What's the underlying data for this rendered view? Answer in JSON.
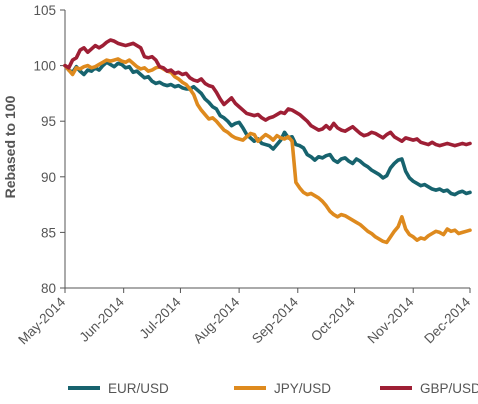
{
  "chart_data": {
    "type": "line",
    "title": "",
    "xlabel": "",
    "ylabel": "Rebased to 100",
    "ylim": [
      80,
      105
    ],
    "yticks": [
      80,
      85,
      90,
      95,
      100,
      105
    ],
    "xtick_labels": [
      "May-2014",
      "Jun-2014",
      "Jul-2014",
      "Aug-2014",
      "Sep-2014",
      "Oct-2014",
      "Nov-2014",
      "Dec-2014"
    ],
    "grid": false,
    "legend_position": "bottom",
    "series": [
      {
        "name": "EUR/USD",
        "color": "#17636E",
        "x": [
          0,
          2,
          4,
          6,
          8,
          10,
          12,
          14,
          16,
          18,
          20,
          22,
          24,
          26,
          28,
          30,
          32,
          34,
          36,
          38,
          40,
          42,
          44,
          46,
          48,
          50,
          52,
          54,
          56,
          58,
          60,
          62,
          64,
          66,
          68,
          70,
          72,
          74,
          76,
          78,
          80,
          82,
          84,
          86,
          88,
          90,
          92,
          94,
          96,
          98,
          100,
          102,
          104,
          106,
          108,
          110,
          112,
          114,
          116,
          118,
          120,
          122,
          124,
          126,
          128,
          130,
          132,
          134,
          136,
          138,
          140,
          142,
          144,
          146,
          148,
          150,
          152,
          154,
          156,
          158,
          160,
          162,
          164,
          166,
          168,
          170,
          172,
          174,
          176,
          178,
          180,
          182,
          184,
          186,
          188,
          190,
          192,
          194,
          196,
          198,
          200,
          202,
          204,
          206,
          208,
          210,
          212,
          214
        ],
        "values": [
          100,
          99.6,
          99.4,
          99.9,
          99.5,
          99.2,
          99.6,
          99.5,
          99.8,
          99.6,
          100,
          100.3,
          100.1,
          99.9,
          100.2,
          100.1,
          99.8,
          99.9,
          99.4,
          99.5,
          99.2,
          98.9,
          99,
          98.6,
          98.4,
          98.5,
          98.3,
          98.2,
          98.3,
          98.1,
          98.2,
          98,
          97.9,
          97.9,
          98.1,
          97.8,
          97.5,
          97,
          96.7,
          96.3,
          96.1,
          95.5,
          95.3,
          95,
          94.6,
          94.8,
          94.9,
          94.4,
          93.8,
          93.5,
          93.2,
          93.4,
          93,
          92.9,
          92.8,
          92.5,
          92.9,
          93.3,
          94,
          93.5,
          93.6,
          92.9,
          92.8,
          92.6,
          92,
          91.8,
          91.5,
          91.8,
          91.7,
          91.9,
          92,
          91.5,
          91.3,
          91.6,
          91.7,
          91.4,
          91.2,
          91.6,
          91.4,
          91.1,
          90.9,
          90.6,
          90.4,
          90.2,
          89.9,
          90.1,
          90.8,
          91.2,
          91.5,
          91.6,
          90.5,
          89.9,
          89.6,
          89.4,
          89.2,
          89.3,
          89.1,
          88.9,
          88.8,
          88.9,
          88.7,
          88.8,
          88.5,
          88.4,
          88.6,
          88.7,
          88.5,
          88.6
        ]
      },
      {
        "name": "JPY/USD",
        "color": "#DE8A1E",
        "x": [
          0,
          2,
          4,
          6,
          8,
          10,
          12,
          14,
          16,
          18,
          20,
          22,
          24,
          26,
          28,
          30,
          32,
          34,
          36,
          38,
          40,
          42,
          44,
          46,
          48,
          50,
          52,
          54,
          56,
          58,
          60,
          62,
          64,
          66,
          68,
          70,
          72,
          74,
          76,
          78,
          80,
          82,
          84,
          86,
          88,
          90,
          92,
          94,
          96,
          98,
          100,
          102,
          104,
          106,
          108,
          110,
          112,
          114,
          116,
          118,
          120,
          122,
          124,
          126,
          128,
          130,
          132,
          134,
          136,
          138,
          140,
          142,
          144,
          146,
          148,
          150,
          152,
          154,
          156,
          158,
          160,
          162,
          164,
          166,
          168,
          170,
          172,
          174,
          176,
          178,
          180,
          182,
          184,
          186,
          188,
          190,
          192,
          194,
          196,
          198,
          200,
          202,
          204,
          206,
          208,
          210,
          212,
          214
        ],
        "values": [
          100,
          99.6,
          99.2,
          99.8,
          99.7,
          99.9,
          100,
          99.8,
          99.9,
          100.1,
          100.3,
          100.5,
          100.4,
          100.5,
          100.6,
          100.4,
          100.3,
          100.5,
          100.2,
          99.9,
          99.7,
          99.8,
          99.5,
          99.6,
          99.8,
          99.9,
          99.7,
          99.5,
          99.4,
          99,
          98.8,
          98.5,
          98.3,
          97.9,
          97.4,
          96.5,
          96,
          95.6,
          95.2,
          95.3,
          95,
          94.6,
          94.2,
          94,
          93.7,
          93.5,
          93.4,
          93.3,
          93.6,
          93.9,
          93.8,
          93.2,
          93.5,
          93.8,
          93.6,
          93.3,
          93.7,
          93.5,
          93.4,
          93.6,
          93.2,
          89.5,
          89,
          88.6,
          88.4,
          88.5,
          88.3,
          88.1,
          87.8,
          87.4,
          86.9,
          86.6,
          86.4,
          86.6,
          86.5,
          86.3,
          86.1,
          85.9,
          85.7,
          85.4,
          85.1,
          84.9,
          84.6,
          84.4,
          84.2,
          84.1,
          84.6,
          85.1,
          85.5,
          86.4,
          85.3,
          84.8,
          84.6,
          84.3,
          84.5,
          84.4,
          84.7,
          84.9,
          85.1,
          85,
          84.8,
          85.3,
          85.1,
          85.2,
          84.9,
          85,
          85.1,
          85.2
        ]
      },
      {
        "name": "GBP/USD",
        "color": "#9E1F35",
        "x": [
          0,
          2,
          4,
          6,
          8,
          10,
          12,
          14,
          16,
          18,
          20,
          22,
          24,
          26,
          28,
          30,
          32,
          34,
          36,
          38,
          40,
          42,
          44,
          46,
          48,
          50,
          52,
          54,
          56,
          58,
          60,
          62,
          64,
          66,
          68,
          70,
          72,
          74,
          76,
          78,
          80,
          82,
          84,
          86,
          88,
          90,
          92,
          94,
          96,
          98,
          100,
          102,
          104,
          106,
          108,
          110,
          112,
          114,
          116,
          118,
          120,
          122,
          124,
          126,
          128,
          130,
          132,
          134,
          136,
          138,
          140,
          142,
          144,
          146,
          148,
          150,
          152,
          154,
          156,
          158,
          160,
          162,
          164,
          166,
          168,
          170,
          172,
          174,
          176,
          178,
          180,
          182,
          184,
          186,
          188,
          190,
          192,
          194,
          196,
          198,
          200,
          202,
          204,
          206,
          208,
          210,
          212,
          214
        ],
        "values": [
          100,
          99.8,
          100.5,
          100.7,
          101.4,
          101.6,
          101.2,
          101.5,
          101.8,
          101.6,
          101.8,
          102.1,
          102.3,
          102.2,
          102,
          101.9,
          101.8,
          101.9,
          102,
          101.8,
          101.6,
          100.8,
          100.7,
          100.8,
          100.5,
          99.9,
          99.8,
          99.5,
          99.6,
          99.3,
          99.4,
          99.2,
          99.3,
          98.9,
          98.7,
          98.6,
          98.8,
          98.4,
          98.2,
          98.1,
          97.6,
          97,
          96.5,
          96.8,
          97.1,
          96.6,
          96.3,
          96,
          95.7,
          95.6,
          95.5,
          95.6,
          95.3,
          95.1,
          95.3,
          95.4,
          95.6,
          95.8,
          95.7,
          96.1,
          96,
          95.8,
          95.6,
          95.3,
          95,
          94.6,
          94.4,
          94.2,
          94.3,
          94.6,
          94.3,
          94.8,
          94.4,
          94.2,
          94.1,
          94.3,
          94.5,
          94.2,
          93.9,
          93.7,
          93.8,
          94,
          93.9,
          93.7,
          93.5,
          93.8,
          94,
          93.6,
          93.4,
          93.2,
          93.5,
          93.4,
          93.3,
          93.4,
          93.1,
          93,
          92.9,
          93.1,
          92.9,
          92.8,
          92.9,
          93,
          92.9,
          92.8,
          92.9,
          93,
          92.9,
          93
        ]
      }
    ],
    "xtick_positions": [
      0,
      31,
      61,
      92,
      123,
      153,
      184,
      214
    ]
  }
}
